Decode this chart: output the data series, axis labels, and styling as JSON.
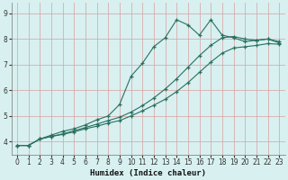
{
  "xlabel": "Humidex (Indice chaleur)",
  "bg_color": "#d8f0f0",
  "grid_color": "#d8a0a0",
  "line_color": "#2a7060",
  "xlim": [
    -0.5,
    23.5
  ],
  "ylim": [
    3.5,
    9.4
  ],
  "xticks": [
    0,
    1,
    2,
    3,
    4,
    5,
    6,
    7,
    8,
    9,
    10,
    11,
    12,
    13,
    14,
    15,
    16,
    17,
    18,
    19,
    20,
    21,
    22,
    23
  ],
  "yticks": [
    4,
    5,
    6,
    7,
    8,
    9
  ],
  "series": [
    {
      "x": [
        0,
        1,
        2,
        3,
        4,
        5,
        6,
        7,
        8,
        9,
        10,
        11,
        12,
        13,
        14,
        15,
        16,
        17,
        18,
        19,
        20,
        21,
        22,
        23
      ],
      "y": [
        3.85,
        3.85,
        4.1,
        4.25,
        4.4,
        4.5,
        4.65,
        4.85,
        5.0,
        5.45,
        6.55,
        7.05,
        7.7,
        8.05,
        8.75,
        8.55,
        8.15,
        8.75,
        8.15,
        8.05,
        7.9,
        7.95,
        8.0,
        7.9
      ]
    },
    {
      "x": [
        0,
        1,
        2,
        3,
        4,
        5,
        6,
        7,
        8,
        9,
        10,
        11,
        12,
        13,
        14,
        15,
        16,
        17,
        18,
        19,
        20,
        21,
        22,
        23
      ],
      "y": [
        3.85,
        3.85,
        4.1,
        4.2,
        4.3,
        4.42,
        4.55,
        4.68,
        4.82,
        4.95,
        5.15,
        5.4,
        5.7,
        6.05,
        6.45,
        6.9,
        7.35,
        7.75,
        8.05,
        8.1,
        8.0,
        7.95,
        8.0,
        7.85
      ]
    },
    {
      "x": [
        0,
        1,
        2,
        3,
        4,
        5,
        6,
        7,
        8,
        9,
        10,
        11,
        12,
        13,
        14,
        15,
        16,
        17,
        18,
        19,
        20,
        21,
        22,
        23
      ],
      "y": [
        3.85,
        3.85,
        4.1,
        4.2,
        4.28,
        4.38,
        4.5,
        4.6,
        4.72,
        4.82,
        5.0,
        5.2,
        5.42,
        5.65,
        5.95,
        6.3,
        6.7,
        7.1,
        7.45,
        7.65,
        7.7,
        7.75,
        7.82,
        7.8
      ]
    }
  ]
}
